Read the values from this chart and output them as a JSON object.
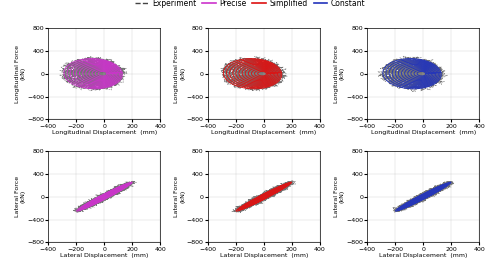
{
  "legend_entries": [
    "Experiment",
    "Precise",
    "Simplified",
    "Constant"
  ],
  "legend_colors": [
    "#444444",
    "#cc33cc",
    "#dd1111",
    "#2233bb"
  ],
  "row_labels": [
    "Longitudinal Force\n(kN)",
    "Lateral Force\n(kN)"
  ],
  "col_xlabels_row1": [
    "Longitudinal Displacement  (mm)",
    "Longitudinal Displacement  (mm)",
    "Longitudinal Displacement  (mm)"
  ],
  "col_xlabels_row2": [
    "Lateral Displacement  (mm)",
    "Lateral Displacement  (mm)",
    "Lateral Displacement  (mm)"
  ],
  "x_lim": [
    -400,
    400
  ],
  "y_lim": [
    -800,
    800
  ],
  "x_ticks": [
    -400,
    -200,
    0,
    200,
    400
  ],
  "y_ticks": [
    -800,
    -400,
    0,
    400,
    800
  ],
  "subplot_colors": [
    "#cc33cc",
    "#dd1111",
    "#2233bb"
  ],
  "background": "#ffffff",
  "grid_color": "#bbbbbb"
}
